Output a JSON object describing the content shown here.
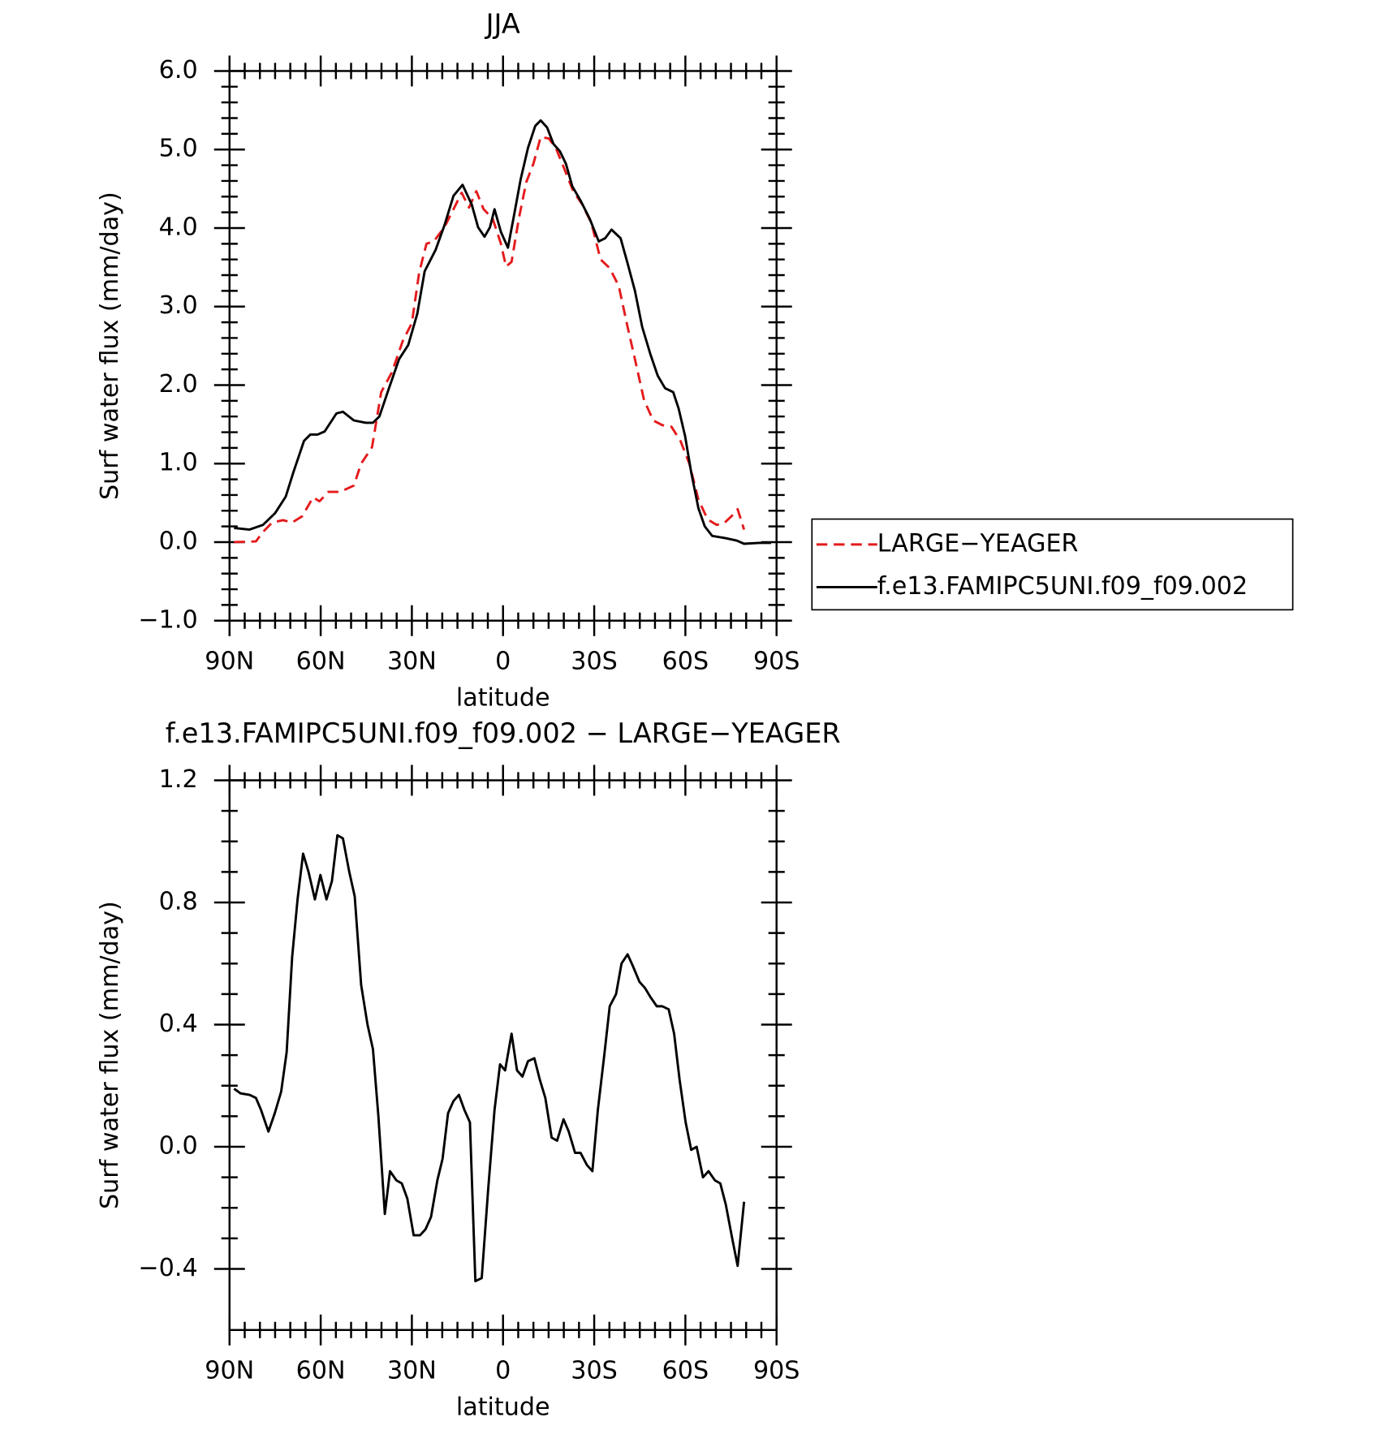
{
  "chart_data": [
    {
      "type": "line",
      "title": "JJA",
      "xlabel": "latitude",
      "ylabel": "Surf water flux (mm/day)",
      "xlim": [
        90,
        -90
      ],
      "xticks": [
        {
          "value": 90,
          "label": "90N"
        },
        {
          "value": 60,
          "label": "60N"
        },
        {
          "value": 30,
          "label": "30N"
        },
        0,
        {
          "value": -30,
          "label": "30S"
        },
        {
          "value": -60,
          "label": "60S"
        },
        {
          "value": -90,
          "label": "90S"
        }
      ],
      "ylim": [
        -1,
        6
      ],
      "yticks": [
        {
          "value": 6,
          "label": "6.0"
        },
        {
          "value": 5,
          "label": "5.0"
        },
        {
          "value": 4,
          "label": "4.0"
        },
        {
          "value": 3,
          "label": "3.0"
        },
        {
          "value": 2,
          "label": "2.0"
        },
        {
          "value": 1,
          "label": "1.0"
        },
        {
          "value": 0,
          "label": "0.0"
        },
        {
          "value": -1,
          "label": "−1.0"
        }
      ],
      "legend": "right",
      "series": [
        {
          "name": "LARGE−YEAGER",
          "color": "#e41a1c",
          "linestyle": "dashed",
          "x": [
            88.5,
            81.3,
            79,
            76,
            72.4,
            69.4,
            66.1,
            62.5,
            60.4,
            57.5,
            53.6,
            49.1,
            46.7,
            43.1,
            40.1,
            36.6,
            33,
            30,
            27.6,
            25.2,
            22.8,
            19.3,
            16.3,
            13.6,
            11.2,
            8.8,
            6.4,
            3.4,
            0.7,
            -1,
            -2.8,
            -5.2,
            -7.6,
            -10,
            -12.4,
            -15.1,
            -17.5,
            -20.1,
            -23.1,
            -26.1,
            -29.1,
            -32.1,
            -35.1,
            -38.1,
            -41,
            -43.4,
            -46.4,
            -49.4,
            -52.4,
            -55.4,
            -58.4,
            -61.3,
            -64.3,
            -67.3,
            -70.3,
            -72.7,
            -75.7,
            -77.2,
            -79.3
          ],
          "values": [
            0.0,
            0.01,
            0.13,
            0.25,
            0.28,
            0.25,
            0.33,
            0.57,
            0.52,
            0.64,
            0.64,
            0.72,
            1.0,
            1.21,
            1.91,
            2.16,
            2.56,
            2.79,
            3.43,
            3.8,
            3.83,
            4.01,
            4.24,
            4.45,
            4.26,
            4.47,
            4.24,
            4.12,
            3.8,
            3.51,
            3.57,
            4.12,
            4.58,
            4.82,
            5.16,
            5.14,
            5.01,
            4.76,
            4.47,
            4.3,
            4.06,
            3.6,
            3.49,
            3.26,
            2.74,
            2.33,
            1.81,
            1.55,
            1.49,
            1.47,
            1.29,
            1.0,
            0.54,
            0.29,
            0.22,
            0.24,
            0.35,
            0.42,
            0.16
          ]
        },
        {
          "name": "f.e13.FAMIPC5UNI.f09_f09.002",
          "color": "#000000",
          "linestyle": "solid",
          "x": [
            88.5,
            83.4,
            79,
            75,
            71.5,
            69,
            65.5,
            63.4,
            61,
            58.7,
            54.8,
            52.7,
            49.1,
            45.2,
            42.8,
            40.7,
            37.8,
            34.2,
            31.2,
            28.2,
            25.8,
            22.2,
            19.3,
            16.3,
            13.3,
            10.3,
            8.2,
            6.1,
            4.3,
            2.8,
            0.7,
            -1.6,
            -3.7,
            -5.8,
            -8.2,
            -10.6,
            -12.4,
            -14.5,
            -16.6,
            -18.7,
            -20.7,
            -22.8,
            -25.5,
            -28.5,
            -31.5,
            -33.6,
            -35.7,
            -38.7,
            -41,
            -43.4,
            -45.8,
            -48.5,
            -50.9,
            -53.3,
            -56,
            -57.8,
            -59.9,
            -61.9,
            -64.3,
            -66.4,
            -68.8,
            -73.3,
            -76.9,
            -79.3,
            -84.3,
            -88.2
          ],
          "values": [
            0.18,
            0.16,
            0.22,
            0.37,
            0.58,
            0.89,
            1.29,
            1.37,
            1.37,
            1.41,
            1.64,
            1.66,
            1.55,
            1.52,
            1.52,
            1.6,
            1.93,
            2.33,
            2.51,
            2.91,
            3.45,
            3.72,
            4.03,
            4.41,
            4.55,
            4.3,
            4.01,
            3.89,
            4.01,
            4.24,
            3.95,
            3.75,
            4.18,
            4.62,
            5.02,
            5.3,
            5.37,
            5.28,
            5.07,
            4.98,
            4.82,
            4.53,
            4.35,
            4.12,
            3.83,
            3.87,
            3.98,
            3.87,
            3.55,
            3.2,
            2.74,
            2.39,
            2.12,
            1.96,
            1.91,
            1.7,
            1.35,
            0.89,
            0.43,
            0.2,
            0.08,
            0.05,
            0.02,
            -0.02,
            -0.01,
            -0.01
          ]
        }
      ]
    },
    {
      "type": "line",
      "title": "f.e13.FAMIPC5UNI.f09_f09.002 − LARGE−YEAGER",
      "xlabel": "latitude",
      "ylabel": "Surf water flux (mm/day)",
      "xlim": [
        90,
        -90
      ],
      "xticks": [
        {
          "value": 90,
          "label": "90N"
        },
        {
          "value": 60,
          "label": "60N"
        },
        {
          "value": 30,
          "label": "30N"
        },
        0,
        {
          "value": -30,
          "label": "30S"
        },
        {
          "value": -60,
          "label": "60S"
        },
        {
          "value": -90,
          "label": "90S"
        }
      ],
      "ylim": [
        -0.6,
        1.2
      ],
      "yticks": [
        1.2,
        0.8,
        0.4,
        {
          "value": 0,
          "label": "0.0"
        },
        {
          "value": -0.4,
          "label": "−0.4"
        }
      ],
      "series": [
        {
          "color": "#000000",
          "linestyle": "solid",
          "x": [
            88.5,
            86.4,
            83.4,
            81.3,
            79.6,
            77.2,
            75.1,
            73,
            71.2,
            69.4,
            67.6,
            65.8,
            64,
            61.9,
            60.1,
            58.1,
            56.3,
            54.5,
            52.7,
            50.6,
            48.8,
            46.7,
            44.6,
            42.8,
            41,
            38.9,
            37.2,
            35.1,
            33.3,
            31.5,
            29.4,
            27.3,
            25.5,
            23.7,
            21.6,
            19.9,
            18.1,
            16.3,
            14.5,
            12.7,
            10.9,
            9.1,
            7,
            4.9,
            2.8,
            1,
            -0.7,
            -2.8,
            -4.6,
            -6.4,
            -8.2,
            -10.3,
            -12.1,
            -13.9,
            -16,
            -17.8,
            -19.9,
            -21.6,
            -23.7,
            -25.5,
            -27.6,
            -29.4,
            -31.2,
            -33.3,
            -35.1,
            -37.2,
            -39,
            -41,
            -42.8,
            -44.9,
            -46.7,
            -48.5,
            -50.6,
            -52.4,
            -54.5,
            -56.3,
            -58.1,
            -60.1,
            -61.9,
            -63.7,
            -65.8,
            -67.6,
            -69.7,
            -71.5,
            -73.3,
            -75.4,
            -77.2,
            -79.3
          ],
          "values": [
            0.19,
            0.175,
            0.17,
            0.16,
            0.12,
            0.05,
            0.11,
            0.18,
            0.31,
            0.62,
            0.81,
            0.96,
            0.9,
            0.81,
            0.89,
            0.81,
            0.87,
            1.02,
            1.01,
            0.9,
            0.82,
            0.53,
            0.4,
            0.32,
            0.1,
            -0.22,
            -0.08,
            -0.11,
            -0.12,
            -0.17,
            -0.29,
            -0.29,
            -0.27,
            -0.23,
            -0.11,
            -0.04,
            0.11,
            0.15,
            0.17,
            0.12,
            0.08,
            -0.44,
            -0.43,
            -0.14,
            0.12,
            0.27,
            0.25,
            0.37,
            0.25,
            0.23,
            0.28,
            0.29,
            0.22,
            0.16,
            0.03,
            0.02,
            0.09,
            0.05,
            -0.02,
            -0.02,
            -0.06,
            -0.08,
            0.12,
            0.3,
            0.46,
            0.5,
            0.6,
            0.63,
            0.59,
            0.54,
            0.52,
            0.49,
            0.46,
            0.46,
            0.45,
            0.37,
            0.22,
            0.08,
            -0.01,
            0.0,
            -0.1,
            -0.08,
            -0.11,
            -0.12,
            -0.19,
            -0.3,
            -0.39,
            -0.18
          ]
        }
      ]
    }
  ]
}
